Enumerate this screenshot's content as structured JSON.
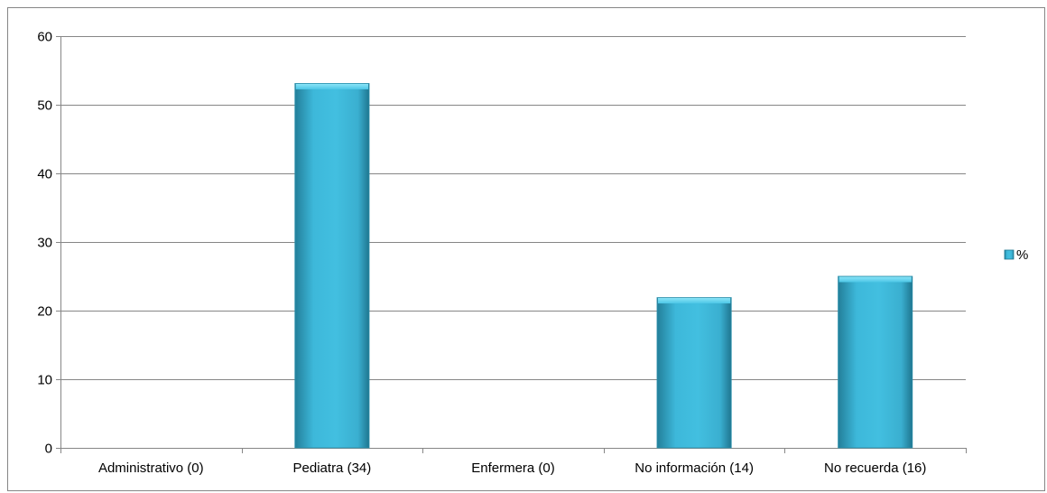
{
  "chart_data": {
    "type": "bar",
    "title": "",
    "xlabel": "",
    "ylabel": "",
    "categories": [
      "Administrativo (0)",
      "Pediatra (34)",
      "Enfermera (0)",
      "No información (14)",
      "No recuerda (16)"
    ],
    "series": [
      {
        "name": "%",
        "values": [
          0,
          53.1,
          0,
          21.9,
          25.0
        ]
      }
    ],
    "ylim": [
      0,
      60
    ],
    "yticks": [
      "0",
      "10",
      "20",
      "30",
      "40",
      "50",
      "60"
    ],
    "grid": true,
    "legend_placement": "right",
    "colors": {
      "bar_light": "#5fd0ee",
      "bar_mid": "#3db8da",
      "bar_dark": "#237f9a",
      "grid": "#868686",
      "axis": "#868686"
    }
  }
}
